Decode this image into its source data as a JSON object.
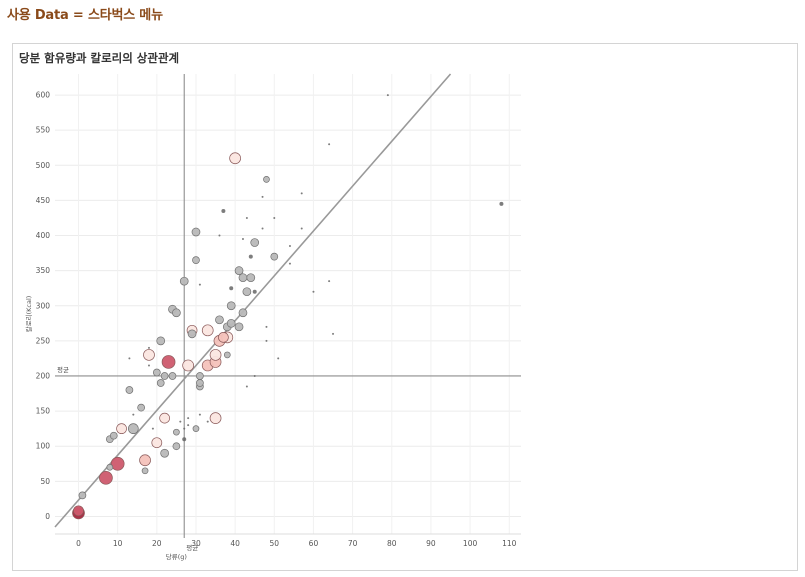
{
  "header": {
    "title": "사용 Data = 스타벅스 메뉴"
  },
  "chart_data": {
    "type": "scatter",
    "title": "당분 함유량과 칼로리의 상관관계",
    "xlabel": "당류(g)",
    "ylabel": "칼로리(Kcal)",
    "xlim": [
      -6,
      113
    ],
    "ylim": [
      -25,
      630
    ],
    "x_ticks": [
      0,
      10,
      20,
      30,
      40,
      50,
      60,
      70,
      80,
      90,
      100,
      110
    ],
    "y_ticks": [
      0,
      50,
      100,
      150,
      200,
      250,
      300,
      350,
      400,
      450,
      500,
      550,
      600
    ],
    "x_tick_labels": [
      "0",
      "10",
      "20",
      "30",
      "40",
      "50",
      "60",
      "70",
      "80",
      "90",
      "100",
      "110"
    ],
    "y_tick_labels": [
      "0",
      "50",
      "100",
      "150",
      "200",
      "250",
      "300",
      "350",
      "400",
      "450",
      "500",
      "550",
      "600"
    ],
    "reference_lines": {
      "x_mean": 27,
      "y_mean": 200,
      "label": "평균"
    },
    "trend_line": {
      "x0": -6,
      "y0": -15,
      "x1": 95,
      "y1": 630
    },
    "colors": {
      "grey": "#b8b8b8",
      "pink1": "#fbe6e0",
      "pink2": "#f4c2bb",
      "pink3": "#e28a92",
      "red": "#cd5a6d",
      "dark": "#a5263d",
      "tiny": "#666666",
      "line": "#999999"
    },
    "points": [
      {
        "x": 0,
        "y": 5,
        "s": 6,
        "c": "dark"
      },
      {
        "x": 0,
        "y": 8,
        "s": 5,
        "c": "red"
      },
      {
        "x": 1,
        "y": 30,
        "s": 3.5,
        "c": "grey"
      },
      {
        "x": 7,
        "y": 55,
        "s": 6.5,
        "c": "red"
      },
      {
        "x": 8,
        "y": 70,
        "s": 3,
        "c": "grey"
      },
      {
        "x": 8,
        "y": 110,
        "s": 3.5,
        "c": "grey"
      },
      {
        "x": 9,
        "y": 115,
        "s": 3.5,
        "c": "grey"
      },
      {
        "x": 10,
        "y": 75,
        "s": 6.5,
        "c": "red"
      },
      {
        "x": 11,
        "y": 125,
        "s": 5,
        "c": "pink1"
      },
      {
        "x": 13,
        "y": 180,
        "s": 3.5,
        "c": "grey"
      },
      {
        "x": 14,
        "y": 125,
        "s": 5,
        "c": "grey"
      },
      {
        "x": 14,
        "y": 145,
        "s": 1,
        "c": "tiny"
      },
      {
        "x": 13,
        "y": 225,
        "s": 1,
        "c": "tiny"
      },
      {
        "x": 16,
        "y": 155,
        "s": 3.5,
        "c": "grey"
      },
      {
        "x": 17,
        "y": 65,
        "s": 3,
        "c": "grey"
      },
      {
        "x": 17,
        "y": 80,
        "s": 5.5,
        "c": "pink2"
      },
      {
        "x": 18,
        "y": 230,
        "s": 5.5,
        "c": "pink1"
      },
      {
        "x": 18,
        "y": 240,
        "s": 1,
        "c": "tiny"
      },
      {
        "x": 18,
        "y": 215,
        "s": 1,
        "c": "tiny"
      },
      {
        "x": 19,
        "y": 125,
        "s": 1,
        "c": "tiny"
      },
      {
        "x": 20,
        "y": 105,
        "s": 5,
        "c": "pink1"
      },
      {
        "x": 20,
        "y": 205,
        "s": 3.5,
        "c": "grey"
      },
      {
        "x": 21,
        "y": 190,
        "s": 3.5,
        "c": "grey"
      },
      {
        "x": 21,
        "y": 250,
        "s": 4,
        "c": "grey"
      },
      {
        "x": 22,
        "y": 90,
        "s": 4,
        "c": "grey"
      },
      {
        "x": 22,
        "y": 140,
        "s": 5,
        "c": "pink1"
      },
      {
        "x": 22,
        "y": 200,
        "s": 3.5,
        "c": "grey"
      },
      {
        "x": 23,
        "y": 220,
        "s": 6.5,
        "c": "red"
      },
      {
        "x": 24,
        "y": 200,
        "s": 3.5,
        "c": "grey"
      },
      {
        "x": 24,
        "y": 295,
        "s": 4,
        "c": "grey"
      },
      {
        "x": 25,
        "y": 290,
        "s": 4,
        "c": "grey"
      },
      {
        "x": 25,
        "y": 100,
        "s": 3.5,
        "c": "grey"
      },
      {
        "x": 25,
        "y": 120,
        "s": 3,
        "c": "grey"
      },
      {
        "x": 26,
        "y": 135,
        "s": 1,
        "c": "tiny"
      },
      {
        "x": 27,
        "y": 110,
        "s": 2,
        "c": "tiny"
      },
      {
        "x": 27,
        "y": 125,
        "s": 1,
        "c": "tiny"
      },
      {
        "x": 27,
        "y": 335,
        "s": 4,
        "c": "grey"
      },
      {
        "x": 28,
        "y": 215,
        "s": 5.5,
        "c": "pink1"
      },
      {
        "x": 28,
        "y": 130,
        "s": 1,
        "c": "tiny"
      },
      {
        "x": 28,
        "y": 140,
        "s": 1,
        "c": "tiny"
      },
      {
        "x": 29,
        "y": 260,
        "s": 4,
        "c": "grey"
      },
      {
        "x": 29,
        "y": 265,
        "s": 5,
        "c": "pink1"
      },
      {
        "x": 30,
        "y": 125,
        "s": 3,
        "c": "grey"
      },
      {
        "x": 30,
        "y": 365,
        "s": 3.5,
        "c": "grey"
      },
      {
        "x": 30,
        "y": 405,
        "s": 4,
        "c": "grey"
      },
      {
        "x": 31,
        "y": 185,
        "s": 3.5,
        "c": "grey"
      },
      {
        "x": 31,
        "y": 190,
        "s": 3.5,
        "c": "grey"
      },
      {
        "x": 31,
        "y": 200,
        "s": 3.5,
        "c": "grey"
      },
      {
        "x": 31,
        "y": 145,
        "s": 1,
        "c": "tiny"
      },
      {
        "x": 31,
        "y": 330,
        "s": 1,
        "c": "tiny"
      },
      {
        "x": 33,
        "y": 215,
        "s": 5.5,
        "c": "pink2"
      },
      {
        "x": 33,
        "y": 265,
        "s": 5.5,
        "c": "pink1"
      },
      {
        "x": 33,
        "y": 135,
        "s": 1,
        "c": "tiny"
      },
      {
        "x": 35,
        "y": 140,
        "s": 5.5,
        "c": "pink1"
      },
      {
        "x": 35,
        "y": 220,
        "s": 5.5,
        "c": "pink2"
      },
      {
        "x": 35,
        "y": 230,
        "s": 5.5,
        "c": "pink1"
      },
      {
        "x": 36,
        "y": 250,
        "s": 5.5,
        "c": "pink2"
      },
      {
        "x": 36,
        "y": 280,
        "s": 4,
        "c": "grey"
      },
      {
        "x": 36,
        "y": 400,
        "s": 1,
        "c": "tiny"
      },
      {
        "x": 37,
        "y": 435,
        "s": 2,
        "c": "tiny"
      },
      {
        "x": 37,
        "y": 255,
        "s": 5,
        "c": "pink2"
      },
      {
        "x": 38,
        "y": 230,
        "s": 3,
        "c": "grey"
      },
      {
        "x": 38,
        "y": 270,
        "s": 4,
        "c": "grey"
      },
      {
        "x": 38,
        "y": 255,
        "s": 5.5,
        "c": "pink1"
      },
      {
        "x": 39,
        "y": 275,
        "s": 4,
        "c": "grey"
      },
      {
        "x": 39,
        "y": 300,
        "s": 4,
        "c": "grey"
      },
      {
        "x": 39,
        "y": 325,
        "s": 2,
        "c": "tiny"
      },
      {
        "x": 40,
        "y": 510,
        "s": 5.5,
        "c": "pink1"
      },
      {
        "x": 41,
        "y": 270,
        "s": 4,
        "c": "grey"
      },
      {
        "x": 41,
        "y": 350,
        "s": 4,
        "c": "grey"
      },
      {
        "x": 42,
        "y": 290,
        "s": 4,
        "c": "grey"
      },
      {
        "x": 42,
        "y": 340,
        "s": 4,
        "c": "grey"
      },
      {
        "x": 42,
        "y": 395,
        "s": 1,
        "c": "tiny"
      },
      {
        "x": 43,
        "y": 320,
        "s": 4,
        "c": "grey"
      },
      {
        "x": 43,
        "y": 425,
        "s": 1,
        "c": "tiny"
      },
      {
        "x": 43,
        "y": 185,
        "s": 1,
        "c": "tiny"
      },
      {
        "x": 44,
        "y": 340,
        "s": 4,
        "c": "grey"
      },
      {
        "x": 44,
        "y": 370,
        "s": 2,
        "c": "tiny"
      },
      {
        "x": 45,
        "y": 390,
        "s": 4,
        "c": "grey"
      },
      {
        "x": 45,
        "y": 320,
        "s": 2,
        "c": "tiny"
      },
      {
        "x": 45,
        "y": 200,
        "s": 1,
        "c": "tiny"
      },
      {
        "x": 47,
        "y": 455,
        "s": 1,
        "c": "tiny"
      },
      {
        "x": 47,
        "y": 410,
        "s": 1,
        "c": "tiny"
      },
      {
        "x": 48,
        "y": 480,
        "s": 3,
        "c": "grey"
      },
      {
        "x": 48,
        "y": 270,
        "s": 1,
        "c": "tiny"
      },
      {
        "x": 48,
        "y": 250,
        "s": 1,
        "c": "tiny"
      },
      {
        "x": 50,
        "y": 370,
        "s": 3.5,
        "c": "grey"
      },
      {
        "x": 50,
        "y": 425,
        "s": 1,
        "c": "tiny"
      },
      {
        "x": 51,
        "y": 225,
        "s": 1,
        "c": "tiny"
      },
      {
        "x": 54,
        "y": 385,
        "s": 1,
        "c": "tiny"
      },
      {
        "x": 54,
        "y": 360,
        "s": 1,
        "c": "tiny"
      },
      {
        "x": 57,
        "y": 460,
        "s": 1,
        "c": "tiny"
      },
      {
        "x": 57,
        "y": 410,
        "s": 1,
        "c": "tiny"
      },
      {
        "x": 60,
        "y": 320,
        "s": 1,
        "c": "tiny"
      },
      {
        "x": 64,
        "y": 530,
        "s": 1,
        "c": "tiny"
      },
      {
        "x": 64,
        "y": 335,
        "s": 1,
        "c": "tiny"
      },
      {
        "x": 65,
        "y": 260,
        "s": 1,
        "c": "tiny"
      },
      {
        "x": 79,
        "y": 600,
        "s": 1,
        "c": "tiny"
      },
      {
        "x": 108,
        "y": 445,
        "s": 2,
        "c": "tiny"
      }
    ]
  }
}
